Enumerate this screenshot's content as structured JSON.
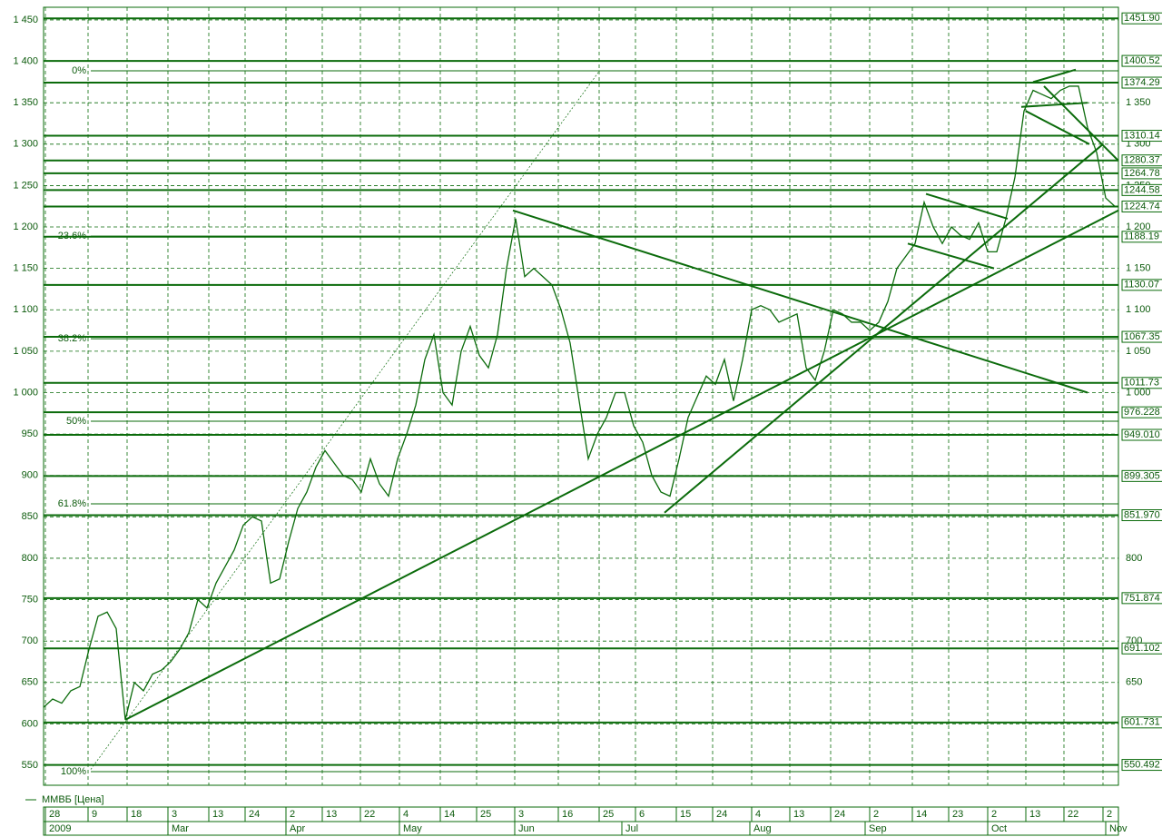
{
  "chart_data": {
    "type": "line",
    "legend": "ММВБ [Цена]",
    "color": "#0b6b0b",
    "series": [
      {
        "name": "ММВБ [Цена]",
        "color": "#0b6b0b",
        "values": [
          620,
          630,
          625,
          640,
          645,
          690,
          730,
          735,
          715,
          605,
          650,
          640,
          660,
          665,
          675,
          690,
          710,
          750,
          740,
          770,
          790,
          810,
          840,
          850,
          845,
          770,
          775,
          820,
          860,
          880,
          910,
          930,
          915,
          900,
          895,
          880,
          920,
          890,
          875,
          920,
          950,
          985,
          1040,
          1070,
          1000,
          985,
          1050,
          1080,
          1045,
          1030,
          1070,
          1150,
          1210,
          1140,
          1150,
          1140,
          1130,
          1100,
          1060,
          990,
          920,
          950,
          970,
          1000,
          1000,
          960,
          940,
          900,
          880,
          875,
          920,
          970,
          995,
          1020,
          1010,
          1040,
          990,
          1040,
          1100,
          1105,
          1100,
          1085,
          1090,
          1095,
          1030,
          1015,
          1050,
          1100,
          1095,
          1085,
          1085,
          1075,
          1085,
          1110,
          1150,
          1165,
          1180,
          1230,
          1200,
          1180,
          1200,
          1190,
          1185,
          1205,
          1170,
          1170,
          1210,
          1260,
          1340,
          1365,
          1360,
          1355,
          1365,
          1370,
          1370,
          1320,
          1290,
          1235,
          1225
        ]
      }
    ],
    "xlim": [
      0,
      118.4
    ],
    "ylim": [
      525.9,
      1465.3
    ],
    "yticks": [
      {
        "value": 550,
        "label": "550"
      },
      {
        "value": 600,
        "label": "600"
      },
      {
        "value": 650,
        "label": "650"
      },
      {
        "value": 700,
        "label": "700"
      },
      {
        "value": 750,
        "label": "750"
      },
      {
        "value": 800,
        "label": "800"
      },
      {
        "value": 850,
        "label": "850"
      },
      {
        "value": 900,
        "label": "900"
      },
      {
        "value": 950,
        "label": "950"
      },
      {
        "value": 1000,
        "label": "1 000"
      },
      {
        "value": 1050,
        "label": "1 050"
      },
      {
        "value": 1100,
        "label": "1 100"
      },
      {
        "value": 1150,
        "label": "1 150"
      },
      {
        "value": 1200,
        "label": "1 200"
      },
      {
        "value": 1250,
        "label": "1 250"
      },
      {
        "value": 1300,
        "label": "1 300"
      },
      {
        "value": 1350,
        "label": "1 350"
      },
      {
        "value": 1400,
        "label": "1 400"
      },
      {
        "value": 1450,
        "label": "1 450"
      }
    ],
    "xticks": [
      {
        "value": 0.2,
        "label": "28"
      },
      {
        "value": 4.9,
        "label": "9"
      },
      {
        "value": 9.2,
        "label": "18"
      },
      {
        "value": 13.7,
        "label": "3"
      },
      {
        "value": 18.2,
        "label": "13"
      },
      {
        "value": 22.2,
        "label": "24"
      },
      {
        "value": 26.7,
        "label": "2"
      },
      {
        "value": 30.7,
        "label": "13"
      },
      {
        "value": 34.9,
        "label": "22"
      },
      {
        "value": 39.2,
        "label": "4"
      },
      {
        "value": 43.7,
        "label": "14"
      },
      {
        "value": 47.7,
        "label": "25"
      },
      {
        "value": 51.9,
        "label": "3"
      },
      {
        "value": 56.7,
        "label": "16"
      },
      {
        "value": 61.2,
        "label": "25"
      },
      {
        "value": 65.2,
        "label": "6"
      },
      {
        "value": 69.7,
        "label": "15"
      },
      {
        "value": 73.7,
        "label": "24"
      },
      {
        "value": 78,
        "label": "4"
      },
      {
        "value": 82.2,
        "label": "13"
      },
      {
        "value": 86.7,
        "label": "24"
      },
      {
        "value": 91,
        "label": "2"
      },
      {
        "value": 95.7,
        "label": "14"
      },
      {
        "value": 99.7,
        "label": "23"
      },
      {
        "value": 104,
        "label": "2"
      },
      {
        "value": 108.2,
        "label": "13"
      },
      {
        "value": 112.4,
        "label": "22"
      },
      {
        "value": 116.7,
        "label": "2"
      }
    ],
    "months": [
      {
        "value": 0.2,
        "label": "2009"
      },
      {
        "value": 13.7,
        "label": "Mar"
      },
      {
        "value": 26.7,
        "label": "Apr"
      },
      {
        "value": 39.2,
        "label": "May"
      },
      {
        "value": 51.9,
        "label": "Jun"
      },
      {
        "value": 63.7,
        "label": "Jul"
      },
      {
        "value": 77.8,
        "label": "Aug"
      },
      {
        "value": 90.5,
        "label": "Sep"
      },
      {
        "value": 104,
        "label": "Oct"
      },
      {
        "value": 117,
        "label": "Nov"
      }
    ],
    "levels": [
      {
        "value": 1451.9,
        "label": "1451.90"
      },
      {
        "value": 1400.52,
        "label": "1400.52"
      },
      {
        "value": 1374.29,
        "label": "1374.29"
      },
      {
        "value": 1310.14,
        "label": "1310.14"
      },
      {
        "value": 1280.37,
        "label": "1280.37"
      },
      {
        "value": 1264.78,
        "label": "1264.78"
      },
      {
        "value": 1244.58,
        "label": "1244.58"
      },
      {
        "value": 1224.74,
        "label": "1224.74"
      },
      {
        "value": 1188.19,
        "label": "1188.19"
      },
      {
        "value": 1130.07,
        "label": "1130.07"
      },
      {
        "value": 1067.35,
        "label": "1067.35"
      },
      {
        "value": 1011.73,
        "label": "1011.73"
      },
      {
        "value": 976.228,
        "label": "976.228"
      },
      {
        "value": 949.01,
        "label": "949.010"
      },
      {
        "value": 899.305,
        "label": "899.305"
      },
      {
        "value": 851.97,
        "label": "851.970"
      },
      {
        "value": 751.874,
        "label": "751.874"
      },
      {
        "value": 691.102,
        "label": "691.102"
      },
      {
        "value": 601.731,
        "label": "601.731"
      },
      {
        "value": 550.492,
        "label": "550.492"
      }
    ],
    "fib_levels": [
      {
        "value": 1388.6,
        "label": "0%"
      },
      {
        "value": 1189,
        "label": "23.6%"
      },
      {
        "value": 1065,
        "label": "38.2%"
      },
      {
        "value": 965.5,
        "label": "50%"
      },
      {
        "value": 865.7,
        "label": "61.8%"
      },
      {
        "value": 542.3,
        "label": "100%"
      }
    ],
    "trendlines": [
      [
        9,
        605,
        118.4,
        1220
      ],
      [
        51.7,
        1220,
        115,
        1000
      ],
      [
        68.4,
        855,
        116.7,
        1300
      ],
      [
        97.2,
        1240,
        106.2,
        1210
      ],
      [
        95.2,
        1180,
        104.7,
        1150
      ],
      [
        109,
        1375,
        113.7,
        1390
      ],
      [
        107.7,
        1345,
        115,
        1350
      ],
      [
        110.2,
        1370,
        118.4,
        1280
      ],
      [
        108.2,
        1340,
        115.2,
        1300
      ]
    ],
    "fib_line": [
      5.2,
      545,
      61.2,
      1388
    ]
  }
}
